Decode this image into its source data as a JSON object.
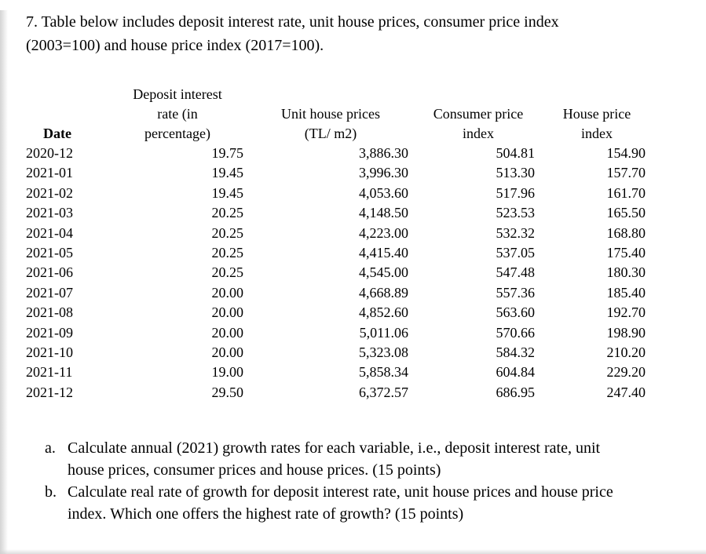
{
  "colors": {
    "text": "#000000",
    "background": "#ffffff"
  },
  "page": {
    "title": "7. Table below includes deposit interest rate, unit house prices, consumer price index\n(2003=100) and house price index (2017=100)."
  },
  "table": {
    "headers": [
      {
        "label": "Date"
      },
      {
        "label": "Deposit interest\nrate (in\npercentage)"
      },
      {
        "label": "Unit house prices\n(TL/ m2)"
      },
      {
        "label": "Consumer price\nindex"
      },
      {
        "label": "House price\nindex"
      }
    ],
    "rows": [
      [
        "2020-12",
        "19.75",
        "3,886.30",
        "504.81",
        "154.90"
      ],
      [
        "2021-01",
        "19.45",
        "3,996.30",
        "513.30",
        "157.70"
      ],
      [
        "2021-02",
        "19.45",
        "4,053.60",
        "517.96",
        "161.70"
      ],
      [
        "2021-03",
        "20.25",
        "4,148.50",
        "523.53",
        "165.50"
      ],
      [
        "2021-04",
        "20.25",
        "4,223.00",
        "532.32",
        "168.80"
      ],
      [
        "2021-05",
        "20.25",
        "4,415.40",
        "537.05",
        "175.40"
      ],
      [
        "2021-06",
        "20.25",
        "4,545.00",
        "547.48",
        "180.30"
      ],
      [
        "2021-07",
        "20.00",
        "4,668.89",
        "557.36",
        "185.40"
      ],
      [
        "2021-08",
        "20.00",
        "4,852.60",
        "563.60",
        "192.70"
      ],
      [
        "2021-09",
        "20.00",
        "5,011.06",
        "570.66",
        "198.90"
      ],
      [
        "2021-10",
        "20.00",
        "5,323.08",
        "584.32",
        "210.20"
      ],
      [
        "2021-11",
        "19.00",
        "5,858.34",
        "604.84",
        "229.20"
      ],
      [
        "2021-12",
        "29.50",
        "6,372.57",
        "686.95",
        "247.40"
      ]
    ]
  },
  "questions": [
    {
      "marker": "a.",
      "text": "Calculate annual (2021) growth rates for each variable, i.e., deposit interest rate, unit\nhouse prices, consumer prices and house prices. (15 points)"
    },
    {
      "marker": "b.",
      "text": "Calculate real rate of growth for deposit interest rate, unit house prices and house price\nindex. Which one offers the highest rate of growth? (15 points)"
    }
  ]
}
